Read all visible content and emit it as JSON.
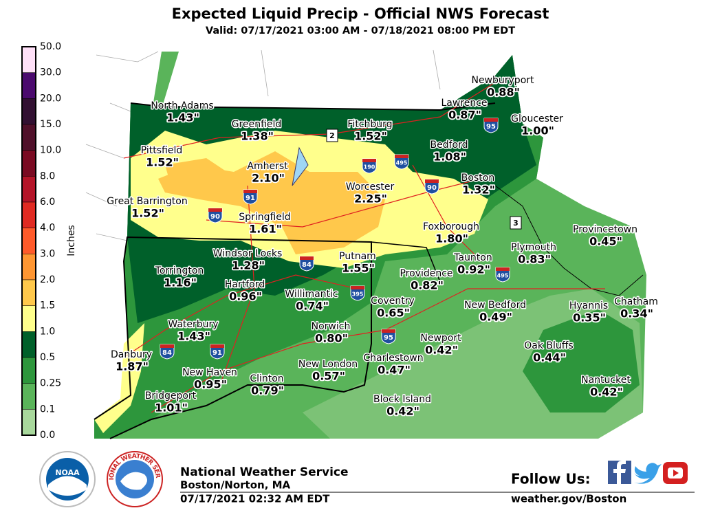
{
  "header": {
    "title": "Expected Liquid Precip - Official NWS Forecast",
    "subtitle": "Valid: 07/17/2021 03:00 AM - 07/18/2021 08:00 PM EDT"
  },
  "legend": {
    "title": "Inches",
    "labels": [
      "50.0",
      "30.0",
      "20.0",
      "15.0",
      "10.0",
      "8.0",
      "6.0",
      "4.0",
      "3.0",
      "2.0",
      "1.5",
      "1.0",
      "0.5",
      "0.25",
      "0.1",
      "0.0"
    ],
    "colors": [
      "#ffe0f8",
      "#4b0a6e",
      "#321032",
      "#50102a",
      "#7a0a22",
      "#b41428",
      "#e02a22",
      "#ff5a2a",
      "#ff9632",
      "#ffc84b",
      "#ffff8c",
      "#00602a",
      "#2d963c",
      "#5ab45a",
      "#a8d89c",
      "#f7f7f7"
    ]
  },
  "cities": [
    {
      "name": "North Adams",
      "amount": "1.43\""
    },
    {
      "name": "Greenfield",
      "amount": "1.38\""
    },
    {
      "name": "Fitchburg",
      "amount": "1.52\""
    },
    {
      "name": "Pittsfield",
      "amount": "1.52\""
    },
    {
      "name": "Amherst",
      "amount": "2.10\""
    },
    {
      "name": "Worcester",
      "amount": "2.25\""
    },
    {
      "name": "Great Barrington",
      "amount": "1.52\""
    },
    {
      "name": "Springfield",
      "amount": "1.61\""
    },
    {
      "name": "Newburyport",
      "amount": "0.88\""
    },
    {
      "name": "Lawrence",
      "amount": "0.87\""
    },
    {
      "name": "Gloucester",
      "amount": "1.00\""
    },
    {
      "name": "Bedford",
      "amount": "1.08\""
    },
    {
      "name": "Boston",
      "amount": "1.32\""
    },
    {
      "name": "Foxborough",
      "amount": "1.80\""
    },
    {
      "name": "Provincetown",
      "amount": "0.45\""
    },
    {
      "name": "Plymouth",
      "amount": "0.83\""
    },
    {
      "name": "Windsor Locks",
      "amount": "1.28\""
    },
    {
      "name": "Putnam",
      "amount": "1.55\""
    },
    {
      "name": "Taunton",
      "amount": "0.92\""
    },
    {
      "name": "Torrington",
      "amount": "1.16\""
    },
    {
      "name": "Providence",
      "amount": "0.82\""
    },
    {
      "name": "Hartford",
      "amount": "0.96\""
    },
    {
      "name": "Willimantic",
      "amount": "0.74\""
    },
    {
      "name": "Coventry",
      "amount": "0.65\""
    },
    {
      "name": "New Bedford",
      "amount": "0.49\""
    },
    {
      "name": "Hyannis",
      "amount": "0.35\""
    },
    {
      "name": "Chatham",
      "amount": "0.34\""
    },
    {
      "name": "Waterbury",
      "amount": "1.43\""
    },
    {
      "name": "Norwich",
      "amount": "0.80\""
    },
    {
      "name": "Newport",
      "amount": "0.42\""
    },
    {
      "name": "Oak Bluffs",
      "amount": "0.44\""
    },
    {
      "name": "Danbury",
      "amount": "1.87\""
    },
    {
      "name": "Charlestown",
      "amount": "0.47\""
    },
    {
      "name": "New London",
      "amount": "0.57\""
    },
    {
      "name": "New Haven",
      "amount": "0.95\""
    },
    {
      "name": "Clinton",
      "amount": "0.79\""
    },
    {
      "name": "Bridgeport",
      "amount": "1.01\""
    },
    {
      "name": "Nantucket",
      "amount": "0.42\""
    },
    {
      "name": "Block Island",
      "amount": "0.42\""
    }
  ],
  "shields": [
    "2",
    "190",
    "495",
    "90",
    "91",
    "90",
    "84",
    "395",
    "495",
    "95",
    "95",
    "84",
    "91",
    "3"
  ],
  "footer": {
    "org": "National Weather Service",
    "office": "Boston/Norton, MA",
    "issued": "07/17/2021 02:32 AM EDT",
    "follow": "Follow Us:",
    "url": "weather.gov/Boston",
    "noaa": "NOAA",
    "nws_ring": "NATIONAL WEATHER SERVICE"
  }
}
